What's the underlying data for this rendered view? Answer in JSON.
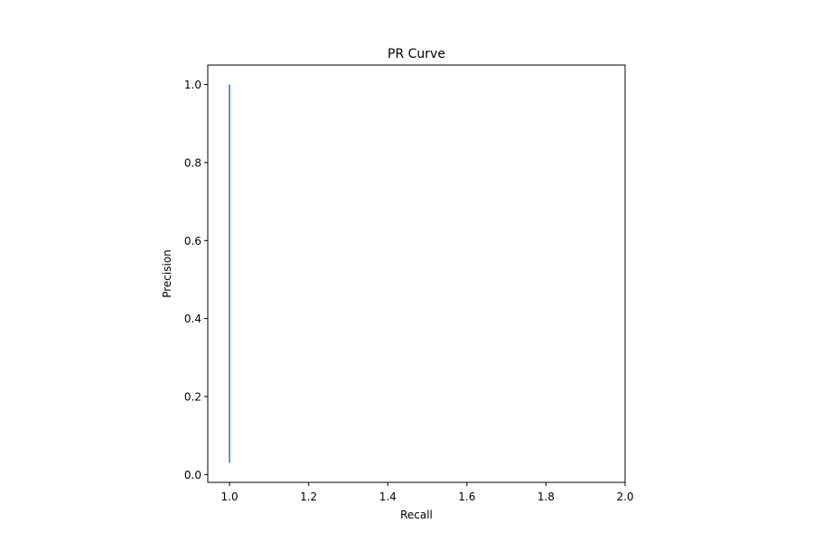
{
  "chart_data": {
    "type": "line",
    "title": "PR Curve",
    "xlabel": "Recall",
    "ylabel": "Precision",
    "xlim": [
      0.945,
      2.0
    ],
    "ylim": [
      -0.02,
      1.05
    ],
    "xticks": [
      1.0,
      1.2,
      1.4,
      1.6,
      1.8,
      2.0
    ],
    "xtick_labels": [
      "1.0",
      "1.2",
      "1.4",
      "1.6",
      "1.8",
      "2.0"
    ],
    "yticks": [
      0.0,
      0.2,
      0.4,
      0.6,
      0.8,
      1.0
    ],
    "ytick_labels": [
      "0.0",
      "0.2",
      "0.4",
      "0.6",
      "0.8",
      "1.0"
    ],
    "grid": false,
    "series": [
      {
        "color": "#1f77b4",
        "x": [
          1.0,
          1.0
        ],
        "y": [
          0.03,
          1.0
        ]
      }
    ]
  }
}
